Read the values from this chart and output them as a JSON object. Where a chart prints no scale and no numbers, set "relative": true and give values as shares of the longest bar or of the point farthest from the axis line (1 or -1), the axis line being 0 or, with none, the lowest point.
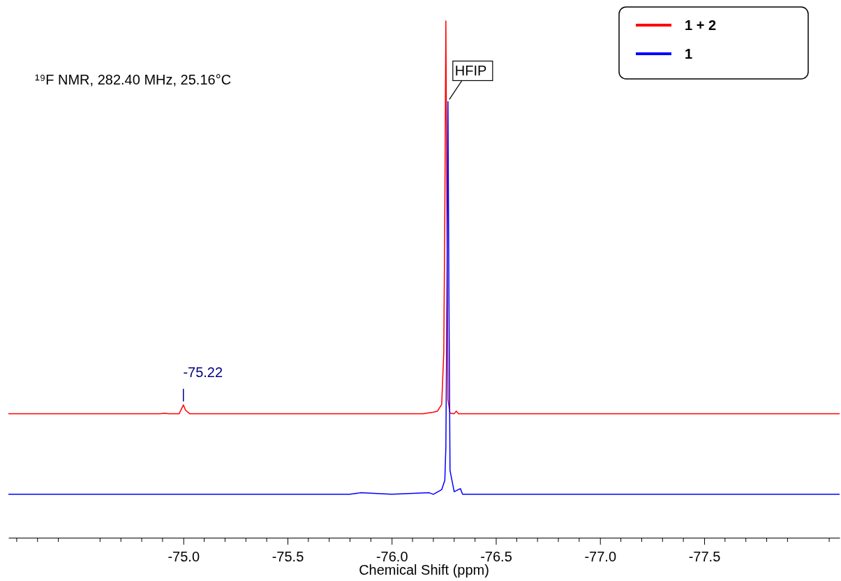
{
  "chart_data": {
    "type": "line",
    "relative": true,
    "xlabel": "Chemical Shift (ppm)",
    "xlim": [
      -74.16,
      -78.15
    ],
    "xticks": [
      {
        "value": -75.0,
        "label": "-75.0"
      },
      {
        "value": -75.5,
        "label": "-75.5"
      },
      {
        "value": -76.0,
        "label": "-76.0"
      },
      {
        "value": -76.5,
        "label": "-76.5"
      },
      {
        "value": -77.0,
        "label": "-77.0"
      },
      {
        "value": -77.5,
        "label": "-77.5"
      }
    ],
    "series": [
      {
        "name": "1 + 2",
        "color": "#ff0000",
        "x": [
          -74.16,
          -74.89,
          -74.91,
          -74.93,
          -74.98,
          -75.0,
          -75.01,
          -75.03,
          -75.5,
          -75.73,
          -76.0,
          -76.15,
          -76.2,
          -76.22,
          -76.24,
          -76.25,
          -76.255,
          -76.26,
          -76.265,
          -76.27,
          -76.28,
          -76.3,
          -76.31,
          -76.32,
          -76.9,
          -78.15
        ],
        "values": [
          0.24,
          0.24,
          0.241,
          0.24,
          0.24,
          0.257,
          0.247,
          0.24,
          0.24,
          0.24,
          0.24,
          0.24,
          0.243,
          0.245,
          0.258,
          0.359,
          0.634,
          1.0,
          0.634,
          0.267,
          0.241,
          0.24,
          0.245,
          0.24,
          0.24,
          0.24
        ]
      },
      {
        "name": "1",
        "color": "#0000ff",
        "x": [
          -74.16,
          -75.8,
          -75.85,
          -76.0,
          -76.18,
          -76.2,
          -76.24,
          -76.255,
          -76.26,
          -76.265,
          -76.27,
          -76.275,
          -76.28,
          -76.3,
          -76.33,
          -76.34,
          -77.36,
          -78.15
        ],
        "values": [
          0.084,
          0.084,
          0.087,
          0.084,
          0.087,
          0.084,
          0.093,
          0.111,
          0.175,
          0.45,
          0.844,
          0.45,
          0.13,
          0.089,
          0.095,
          0.084,
          0.084,
          0.084
        ]
      }
    ],
    "annotations": [
      "¹⁹F NMR, 282.40 MHz, 25.16°C",
      {
        "text": "HFIP",
        "x": -76.27,
        "y": 0.844
      },
      {
        "text": "-75.22",
        "x": -75.0,
        "y": 0.257
      }
    ],
    "legend": "top right",
    "line_style": "solid"
  }
}
